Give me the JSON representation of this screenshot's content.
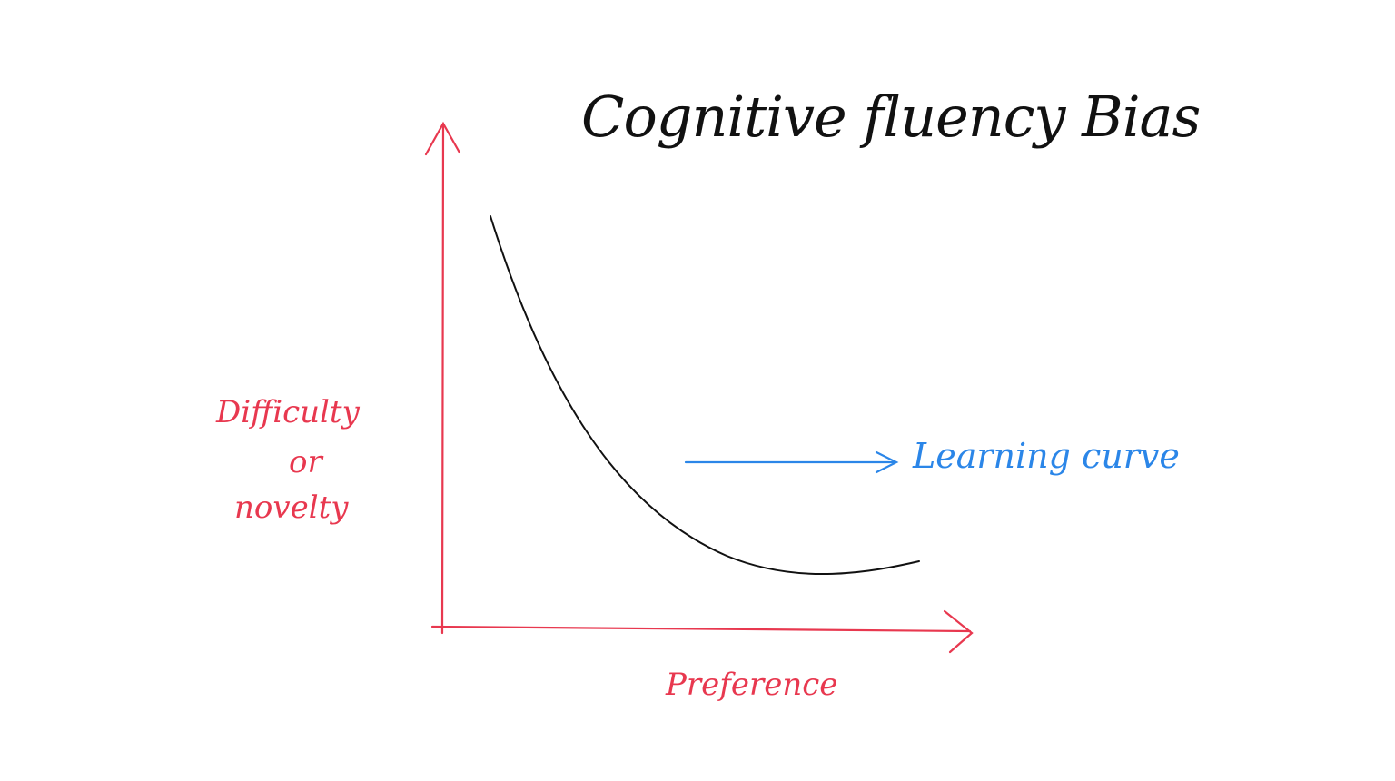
{
  "title": "Cognitive fluency Bias",
  "y_axis_label": {
    "line1": "Difficulty",
    "line2": "or",
    "line3": "novelty"
  },
  "x_axis_label": "Preference",
  "annotation": "Learning curve",
  "colors": {
    "ink": "#111111",
    "axes": "#e8384f",
    "annotation": "#2b86e8"
  }
}
